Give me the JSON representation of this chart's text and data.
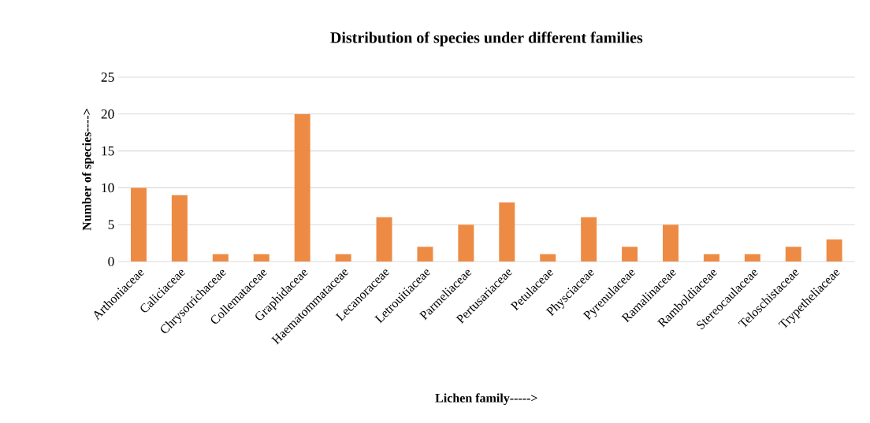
{
  "chart_data": {
    "type": "bar",
    "title": "Distribution of species under different families",
    "xlabel": "Lichen family----->",
    "ylabel": "Number of species---->",
    "categories": [
      "Arthoniaceae",
      "Caliciaceae",
      "Chrysotrichaceae",
      "Collemataceae",
      "Graphidaceae",
      "Haematommataceae",
      "Lecanoraceae",
      "Letrouitiaceae",
      "Parmeliaceae",
      "Pertusariaceae",
      "Petulaceae",
      "Physciaceae",
      "Pyrenulaceae",
      "Ramalinaceae",
      "Ramboldiaceae",
      "Stereocaulaceae",
      "Teloschistaceae",
      "Trypetheliaceae"
    ],
    "values": [
      10,
      9,
      1,
      1,
      20,
      1,
      6,
      2,
      5,
      8,
      1,
      6,
      2,
      5,
      1,
      1,
      2,
      3
    ],
    "color": "#ed8b45",
    "ylim": [
      0,
      25
    ],
    "yticks": [
      0,
      5,
      10,
      15,
      20,
      25
    ],
    "grid": "y"
  }
}
